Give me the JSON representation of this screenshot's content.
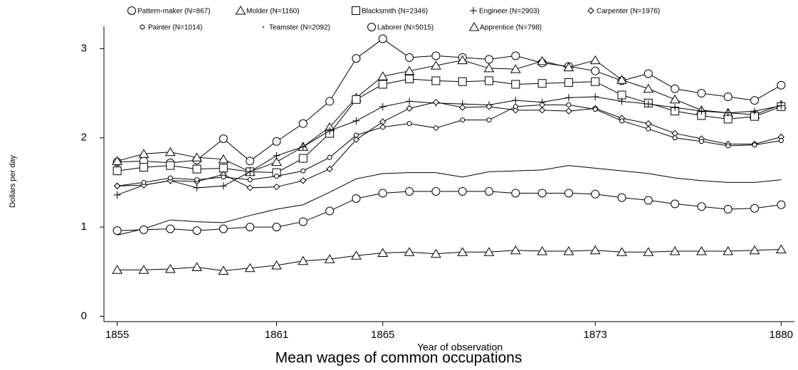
{
  "chart_data": {
    "type": "line",
    "title": "Mean wages of common occupations",
    "x_label": "Year of observation",
    "y_label": "Dollars per day",
    "x": [
      1855,
      1856,
      1857,
      1858,
      1859,
      1860,
      1861,
      1862,
      1863,
      1864,
      1865,
      1866,
      1867,
      1868,
      1869,
      1870,
      1871,
      1872,
      1873,
      1874,
      1875,
      1876,
      1877,
      1878,
      1879,
      1880
    ],
    "xlim": [
      1854.5,
      1880.5
    ],
    "xticks": [
      1855,
      1861,
      1865,
      1873,
      1880
    ],
    "ylim": [
      -0.06,
      3.25
    ],
    "yticks": [
      0,
      1,
      2,
      3
    ],
    "grid": false,
    "series": [
      {
        "name": "Pattern-maker (N=867)",
        "color": "#000000",
        "marker": "circle",
        "values": [
          1.73,
          1.74,
          1.72,
          1.75,
          1.99,
          1.74,
          1.96,
          2.16,
          2.41,
          2.89,
          3.11,
          2.9,
          2.92,
          2.9,
          2.88,
          2.92,
          2.84,
          2.8,
          2.75,
          2.64,
          2.72,
          2.55,
          2.5,
          2.46,
          2.42,
          2.59
        ]
      },
      {
        "name": "Molder (N=1160)",
        "color": "#000000",
        "marker": "triangle",
        "values": [
          1.74,
          1.82,
          1.84,
          1.78,
          1.76,
          1.62,
          1.73,
          1.9,
          2.12,
          2.45,
          2.69,
          2.75,
          2.81,
          2.87,
          2.78,
          2.77,
          2.86,
          2.79,
          2.87,
          2.65,
          2.55,
          2.43,
          2.31,
          2.28,
          2.26,
          2.37
        ]
      },
      {
        "name": "Blacksmith (N=2346)",
        "color": "#000000",
        "marker": "square",
        "values": [
          1.63,
          1.67,
          1.69,
          1.65,
          1.66,
          1.62,
          1.61,
          1.77,
          2.05,
          2.43,
          2.6,
          2.66,
          2.64,
          2.63,
          2.64,
          2.6,
          2.61,
          2.62,
          2.63,
          2.48,
          2.39,
          2.3,
          2.25,
          2.21,
          2.24,
          2.35
        ]
      },
      {
        "name": "Engineer (N=2903)",
        "color": "#000000",
        "marker": "plus",
        "values": [
          1.36,
          1.47,
          1.52,
          1.44,
          1.46,
          1.62,
          1.8,
          1.9,
          2.08,
          2.19,
          2.35,
          2.41,
          2.39,
          2.38,
          2.37,
          2.42,
          2.4,
          2.45,
          2.46,
          2.41,
          2.38,
          2.34,
          2.3,
          2.28,
          2.3,
          2.36
        ]
      },
      {
        "name": "Carpenter (N=1976)",
        "color": "#000000",
        "marker": "diamond",
        "values": [
          1.46,
          1.47,
          1.52,
          1.51,
          1.59,
          1.44,
          1.45,
          1.52,
          1.65,
          1.98,
          2.18,
          2.33,
          2.4,
          2.34,
          2.35,
          2.31,
          2.31,
          2.3,
          2.33,
          2.22,
          2.16,
          2.05,
          1.99,
          1.93,
          1.93,
          2.01
        ]
      },
      {
        "name": "Painter (N=1014)",
        "color": "#000000",
        "marker": "small-circle",
        "values": [
          1.46,
          1.5,
          1.55,
          1.53,
          1.56,
          1.53,
          1.57,
          1.63,
          1.78,
          2.03,
          2.12,
          2.16,
          2.11,
          2.2,
          2.2,
          2.35,
          2.37,
          2.37,
          2.32,
          2.19,
          2.1,
          2.0,
          1.96,
          1.91,
          1.92,
          1.97
        ]
      },
      {
        "name": "Teamster (N=2092)",
        "color": "#000000",
        "marker": "none",
        "values": [
          0.91,
          0.98,
          1.08,
          1.06,
          1.05,
          1.13,
          1.2,
          1.25,
          1.39,
          1.54,
          1.6,
          1.61,
          1.61,
          1.56,
          1.62,
          1.63,
          1.64,
          1.69,
          1.66,
          1.63,
          1.6,
          1.55,
          1.52,
          1.5,
          1.5,
          1.53
        ]
      },
      {
        "name": "Laborer (N=5015)",
        "color": "#000000",
        "marker": "circle",
        "values": [
          0.96,
          0.97,
          0.98,
          0.96,
          0.98,
          1.0,
          1.0,
          1.06,
          1.18,
          1.32,
          1.38,
          1.4,
          1.4,
          1.4,
          1.4,
          1.38,
          1.38,
          1.38,
          1.37,
          1.33,
          1.3,
          1.26,
          1.23,
          1.2,
          1.21,
          1.25
        ]
      },
      {
        "name": "Apprentice (N=798)",
        "color": "#000000",
        "marker": "triangle",
        "values": [
          0.52,
          0.52,
          0.53,
          0.55,
          0.51,
          0.54,
          0.57,
          0.62,
          0.64,
          0.68,
          0.71,
          0.72,
          0.7,
          0.72,
          0.72,
          0.74,
          0.73,
          0.73,
          0.74,
          0.72,
          0.72,
          0.73,
          0.73,
          0.73,
          0.74,
          0.75
        ]
      }
    ]
  }
}
